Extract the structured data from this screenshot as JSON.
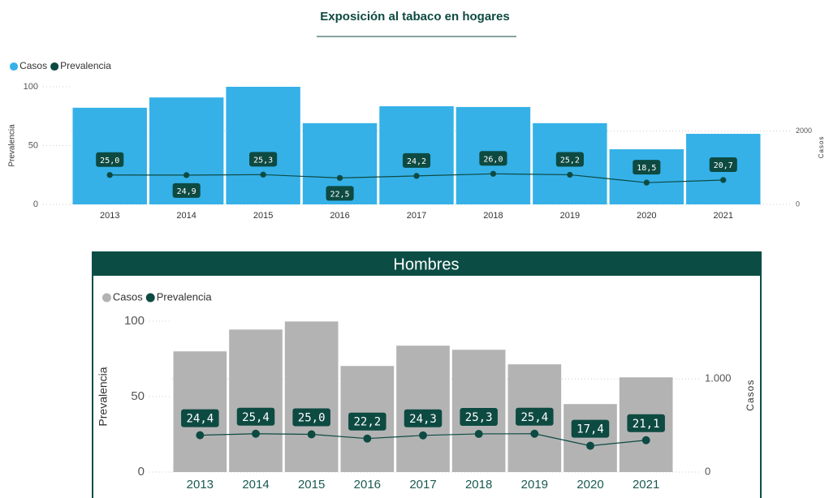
{
  "chart_data": [
    {
      "type": "combo",
      "title": "Exposición al tabaco en hogares",
      "categories": [
        "2013",
        "2014",
        "2015",
        "2016",
        "2017",
        "2018",
        "2019",
        "2020",
        "2021"
      ],
      "series": [
        {
          "name": "Casos",
          "color": "#35b1e8",
          "axis": "y2",
          "values": [
            2630,
            2910,
            3200,
            2210,
            2670,
            2650,
            2210,
            1500,
            1920
          ]
        },
        {
          "name": "Prevalencia",
          "color": "#0d4a42",
          "values": [
            25.0,
            24.9,
            25.3,
            22.5,
            24.2,
            26.0,
            25.2,
            18.5,
            20.7
          ],
          "value_labels": [
            "25,0",
            "24,9",
            "25,3",
            "22,5",
            "24,2",
            "26,0",
            "25,2",
            "18,5",
            "20,7"
          ]
        }
      ],
      "ylabel": "Prevalencia",
      "y2label": "Casos",
      "ylim": [
        0,
        100
      ],
      "yticks": [
        0,
        50,
        100
      ],
      "y2lim": [
        0,
        3200
      ],
      "y2ticks": [
        0,
        2000
      ],
      "grid": true
    },
    {
      "type": "combo",
      "title": "Hombres",
      "categories": [
        "2013",
        "2014",
        "2015",
        "2016",
        "2017",
        "2018",
        "2019",
        "2020",
        "2021"
      ],
      "series": [
        {
          "name": "Casos",
          "color": "#b3b3b3",
          "axis": "y2",
          "values": [
            1296,
            1530,
            1617,
            1139,
            1357,
            1313,
            1157,
            730,
            1017
          ]
        },
        {
          "name": "Prevalencia",
          "color": "#0d4a42",
          "values": [
            24.4,
            25.4,
            25.0,
            22.2,
            24.3,
            25.3,
            25.4,
            17.4,
            21.1
          ],
          "value_labels": [
            "24,4",
            "25,4",
            "25,0",
            "22,2",
            "24,3",
            "25,3",
            "25,4",
            "17,4",
            "21,1"
          ]
        }
      ],
      "ylabel": "Prevalencia",
      "y2label": "Casos",
      "ylim": [
        0,
        100
      ],
      "yticks": [
        0,
        50,
        100
      ],
      "y2lim": [
        0,
        1620
      ],
      "y2ticks": [
        0,
        {
          "value": 1000,
          "label": "1.000"
        }
      ],
      "grid": true
    }
  ]
}
